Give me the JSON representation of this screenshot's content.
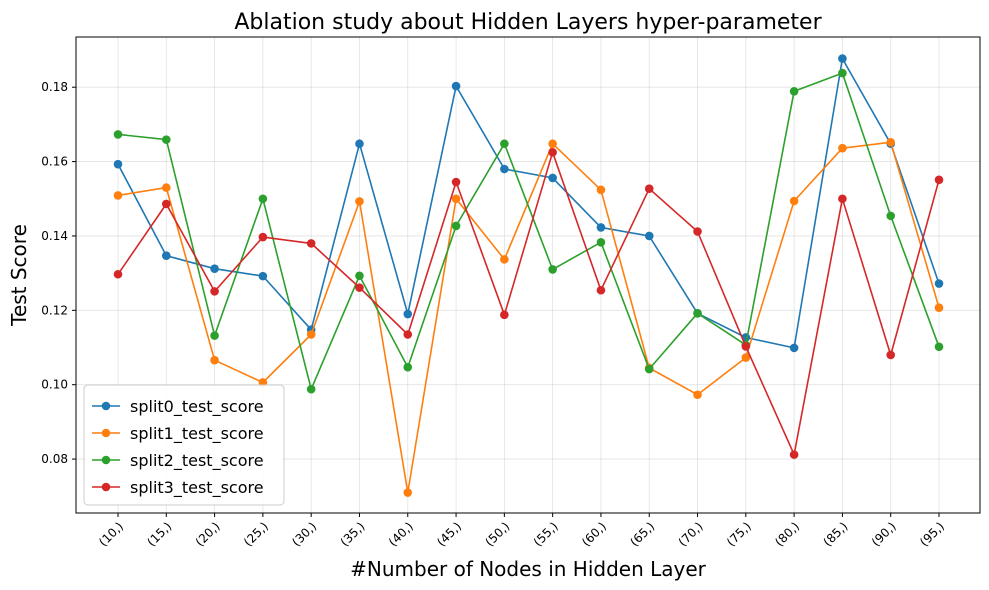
{
  "chart_data": {
    "type": "line",
    "title": "Ablation study about Hidden Layers hyper-parameter",
    "xlabel": "#Number of Nodes in Hidden Layer",
    "ylabel": "Test Score",
    "categories": [
      "(10,)",
      "(15,)",
      "(20,)",
      "(25,)",
      "(30,)",
      "(35,)",
      "(40,)",
      "(45,)",
      "(50,)",
      "(55,)",
      "(60,)",
      "(65,)",
      "(70,)",
      "(75,)",
      "(80,)",
      "(85,)",
      "(90,)",
      "(95,)"
    ],
    "yticks": [
      "0.08",
      "0.10",
      "0.12",
      "0.14",
      "0.16",
      "0.18"
    ],
    "ylim": [
      0.0655,
      0.1935
    ],
    "grid": true,
    "legend_position": "lower-left",
    "series": [
      {
        "name": "split0_test_score",
        "color": "#1f77b4",
        "values": [
          0.1593,
          0.1347,
          0.1312,
          0.1292,
          0.1148,
          0.1648,
          0.119,
          0.1803,
          0.158,
          0.1556,
          0.1423,
          0.14,
          0.1192,
          0.1127,
          0.1099,
          0.1877,
          0.1648,
          0.1272
        ]
      },
      {
        "name": "split1_test_score",
        "color": "#ff7f0e",
        "values": [
          0.1509,
          0.153,
          0.1066,
          0.1006,
          0.1135,
          0.1493,
          0.071,
          0.15,
          0.1337,
          0.1648,
          0.1524,
          0.1045,
          0.0973,
          0.1073,
          0.1494,
          0.1636,
          0.1652,
          0.1207
        ]
      },
      {
        "name": "split2_test_score",
        "color": "#2ca02c",
        "values": [
          0.1673,
          0.1659,
          0.1132,
          0.15,
          0.0988,
          0.1293,
          0.1047,
          0.1427,
          0.1648,
          0.131,
          0.1383,
          0.1042,
          0.1192,
          0.1107,
          0.1789,
          0.1838,
          0.1454,
          0.1102
        ]
      },
      {
        "name": "split3_test_score",
        "color": "#d62728",
        "values": [
          0.1297,
          0.1486,
          0.1251,
          0.1397,
          0.138,
          0.1261,
          0.1135,
          0.1545,
          0.1188,
          0.1625,
          0.1254,
          0.1527,
          0.1412,
          0.1103,
          0.0812,
          0.15,
          0.108,
          0.1551
        ]
      }
    ]
  }
}
